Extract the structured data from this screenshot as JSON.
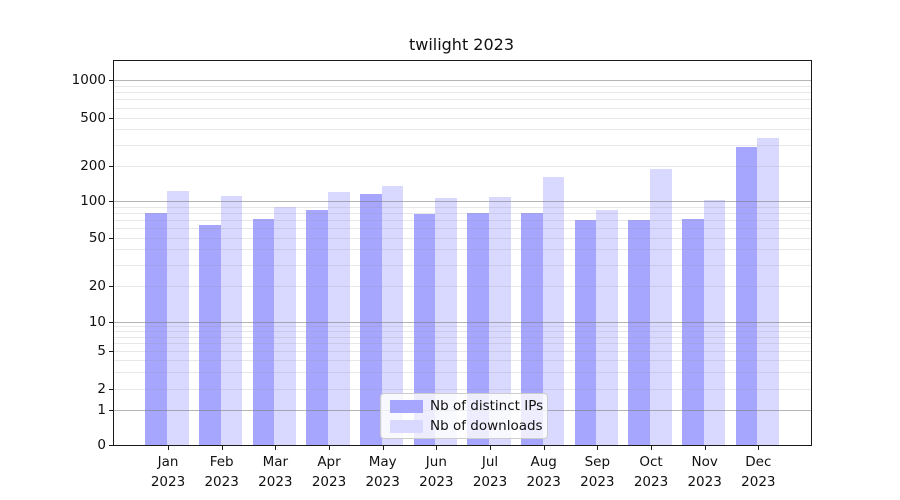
{
  "chart_data": {
    "type": "bar",
    "title": "twilight 2023",
    "categories": [
      "Jan 2023",
      "Feb 2023",
      "Mar 2023",
      "Apr 2023",
      "May 2023",
      "Jun 2023",
      "Jul 2023",
      "Aug 2023",
      "Sep 2023",
      "Oct 2023",
      "Nov 2023",
      "Dec 2023"
    ],
    "x_tick_top_lines": [
      "Jan",
      "Feb",
      "Mar",
      "Apr",
      "May",
      "Jun",
      "Jul",
      "Aug",
      "Sep",
      "Oct",
      "Nov",
      "Dec"
    ],
    "x_tick_bottom_line": "2023",
    "series": [
      {
        "name": "Nb of distinct IPs",
        "color": "#a6a6ff",
        "values": [
          80,
          64,
          72,
          84,
          116,
          78,
          80,
          80,
          70,
          70,
          71,
          286
        ]
      },
      {
        "name": "Nb of downloads",
        "color": "#d9d9ff",
        "values": [
          123,
          112,
          89,
          121,
          136,
          106,
          108,
          161,
          84,
          188,
          102,
          340
        ]
      }
    ],
    "yscale": "log-with-zero",
    "y_tick_labels": [
      "0",
      "1",
      "2",
      "5",
      "10",
      "20",
      "50",
      "100",
      "200",
      "500",
      "1000"
    ],
    "y_ticks": [
      0,
      1,
      2,
      5,
      10,
      20,
      50,
      100,
      200,
      500,
      1000
    ],
    "ylim_top_label": "1000",
    "grid": "major+minor",
    "legend_position": "lower center",
    "colors": {
      "distinct_ips": "#a6a6ff",
      "downloads": "#d9d9ff",
      "grid_major": "#b0b0b0",
      "grid_minor": "#e6e6e6",
      "spine": "#1a1a1a"
    }
  }
}
